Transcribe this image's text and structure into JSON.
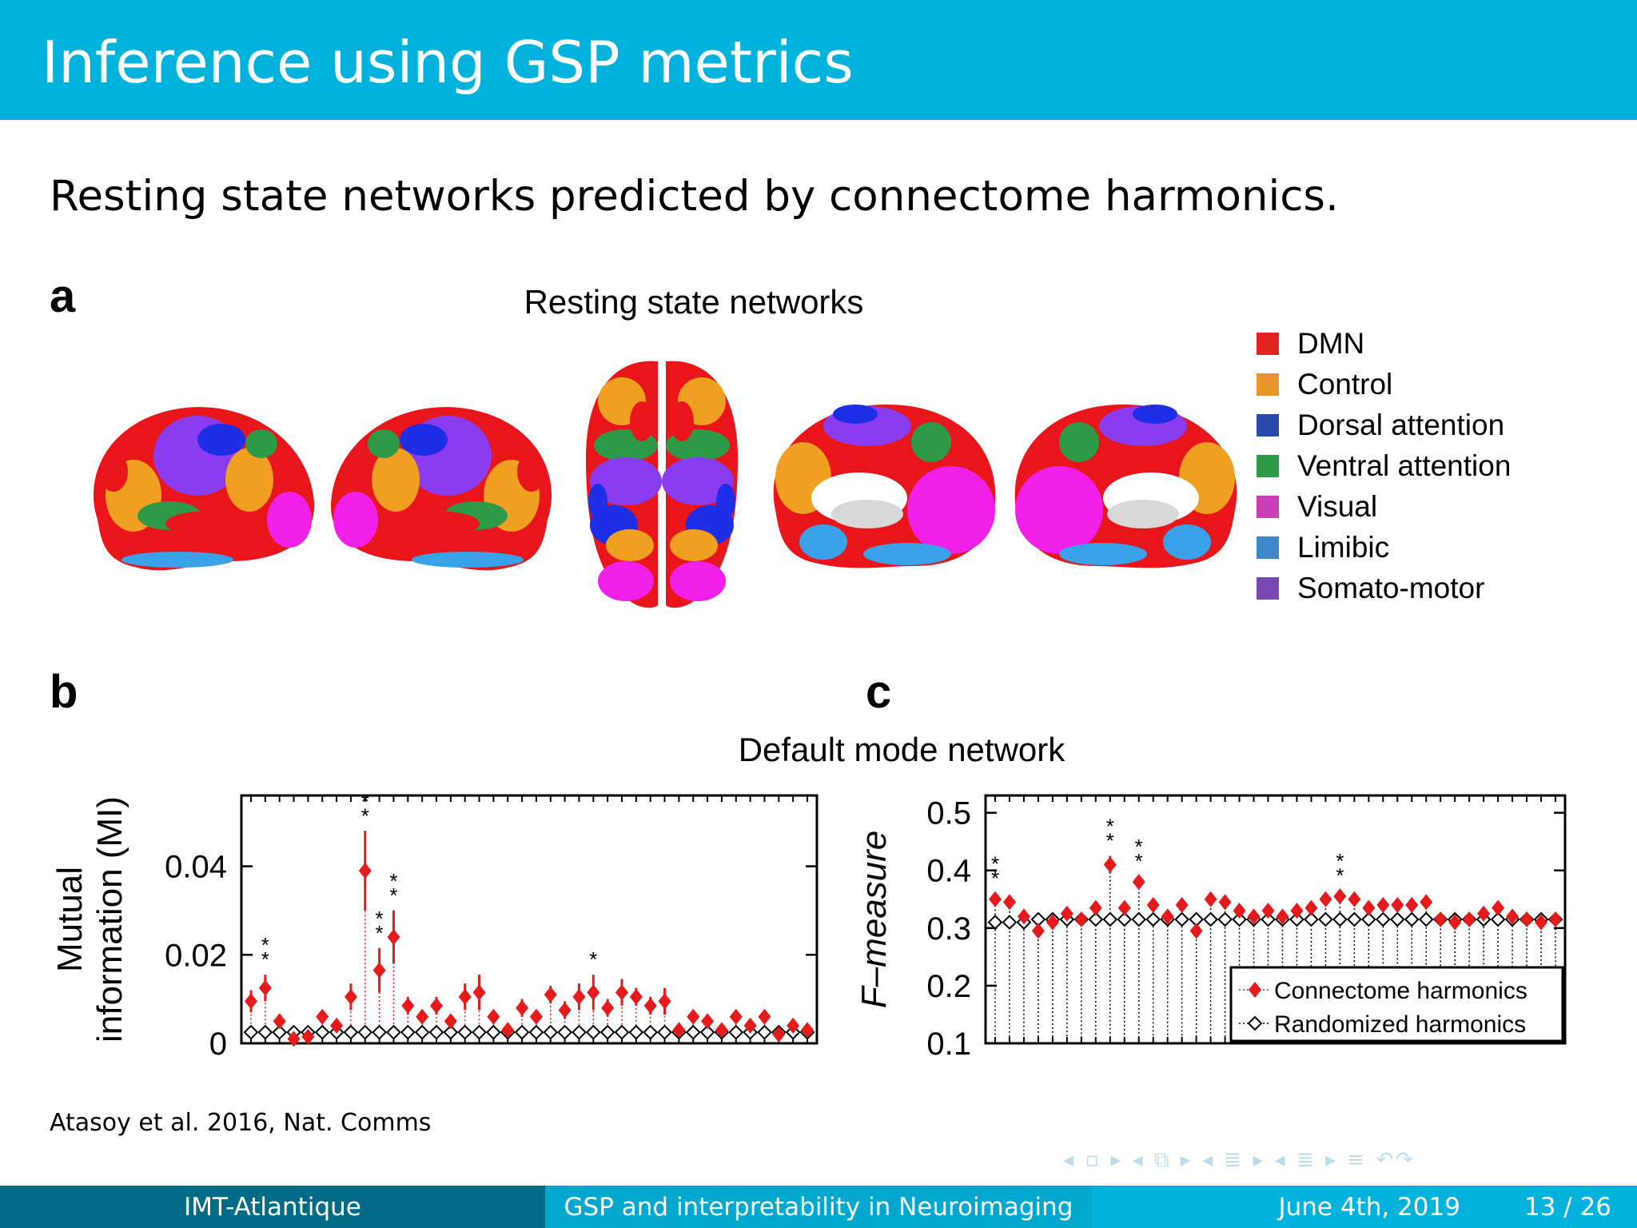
{
  "slide": {
    "title": "Inference using GSP metrics",
    "subtitle": "Resting state networks predicted by connectome harmonics.",
    "citation": "Atasoy et al. 2016, Nat. Comms"
  },
  "footer": {
    "left": "IMT-Atlantique",
    "middle": "GSP and interpretability in Neuroimaging",
    "date": "June 4th, 2019",
    "page": "13 / 26"
  },
  "nav_symbols": "◂ ▫ ▸ ◂ ⧉ ▸ ◂ ≣ ▸ ◂ ≣ ▸ ≡ ↶↷",
  "figure": {
    "panel_a": {
      "letter": "a",
      "title": "Resting state networks",
      "legend": [
        {
          "label": "DMN",
          "color": "#e32522"
        },
        {
          "label": "Control",
          "color": "#e8962c"
        },
        {
          "label": "Dorsal attention",
          "color": "#2a4aaa"
        },
        {
          "label": "Ventral attention",
          "color": "#2e9a48"
        },
        {
          "label": "Visual",
          "color": "#c83cb4"
        },
        {
          "label": "Limibic",
          "color": "#3f86c8"
        },
        {
          "label": "Somato-motor",
          "color": "#7a48b2"
        }
      ],
      "brain_colors": {
        "red": "#e8161a",
        "orange": "#f0a020",
        "blue": "#1e2ee6",
        "green": "#2e9a48",
        "magenta": "#f020e8",
        "light_blue": "#3aa0e8",
        "purple": "#8a3cf0",
        "grey": "#d8d8d8"
      }
    },
    "shared_title": "Default mode network",
    "marker_colors": {
      "connectome": "#e41a1c",
      "randomized": "#000000"
    }
  },
  "chart_data": [
    {
      "type": "scatter",
      "panel": "b",
      "ylabel_lines": [
        "Mutual",
        "information (MI)"
      ],
      "xlabel": "",
      "ylim": [
        0,
        0.056
      ],
      "yticks": [
        0,
        0.02,
        0.04
      ],
      "ytick_labels": [
        "0",
        "0.02",
        "0.04"
      ],
      "x_count": 40,
      "grid": false,
      "series": [
        {
          "values": [
            0.0095,
            0.0125,
            0.005,
            0.001,
            0.0015,
            0.006,
            0.004,
            0.0105,
            0.039,
            0.0165,
            0.024,
            0.0085,
            0.006,
            0.0085,
            0.005,
            0.0105,
            0.0115,
            0.006,
            0.003,
            0.008,
            0.006,
            0.011,
            0.0075,
            0.0105,
            0.0115,
            0.008,
            0.0115,
            0.0105,
            0.0085,
            0.0095,
            0.003,
            0.006,
            0.005,
            0.003,
            0.006,
            0.004,
            0.006,
            0.002,
            0.004,
            0.003
          ],
          "errors": [
            0.0025,
            0.003,
            0.001,
            0.001,
            0.001,
            0.001,
            0.001,
            0.003,
            0.009,
            0.005,
            0.006,
            0.002,
            0.001,
            0.002,
            0.001,
            0.003,
            0.004,
            0.001,
            0.001,
            0.002,
            0.001,
            0.002,
            0.002,
            0.003,
            0.004,
            0.002,
            0.003,
            0.002,
            0.002,
            0.003,
            0.001,
            0.001,
            0.001,
            0.001,
            0.001,
            0.001,
            0.001,
            0.001,
            0.001,
            0.001
          ]
        },
        {
          "values": [
            0.0025,
            0.0025,
            0.0025,
            0.0025,
            0.0025,
            0.0025,
            0.0025,
            0.0025,
            0.0025,
            0.0025,
            0.0025,
            0.0025,
            0.0025,
            0.0025,
            0.0025,
            0.0025,
            0.0025,
            0.0025,
            0.0025,
            0.0025,
            0.0025,
            0.0025,
            0.0025,
            0.0025,
            0.0025,
            0.0025,
            0.0025,
            0.0025,
            0.0025,
            0.0025,
            0.0025,
            0.0025,
            0.0025,
            0.0025,
            0.0025,
            0.0025,
            0.0025,
            0.0025,
            0.0025,
            0.0025
          ]
        }
      ],
      "annotations": [
        {
          "index": 1,
          "text": "**"
        },
        {
          "index": 8,
          "text": "**"
        },
        {
          "index": 9,
          "text": "**"
        },
        {
          "index": 10,
          "text": "**"
        },
        {
          "index": 24,
          "text": "*"
        }
      ]
    },
    {
      "type": "scatter",
      "panel": "c",
      "ylabel": "F–measure",
      "xlabel": "",
      "ylim": [
        0.1,
        0.53
      ],
      "yticks": [
        0.1,
        0.2,
        0.3,
        0.4,
        0.5
      ],
      "ytick_labels": [
        "0.1",
        "0.2",
        "0.3",
        "0.4",
        "0.5"
      ],
      "x_count": 40,
      "grid": false,
      "legend_position": "bottom-right",
      "series": [
        {
          "name": "Connectome harmonics",
          "values": [
            0.35,
            0.345,
            0.32,
            0.295,
            0.31,
            0.325,
            0.315,
            0.335,
            0.41,
            0.335,
            0.38,
            0.34,
            0.32,
            0.34,
            0.295,
            0.35,
            0.345,
            0.33,
            0.32,
            0.33,
            0.32,
            0.33,
            0.335,
            0.35,
            0.355,
            0.35,
            0.335,
            0.34,
            0.34,
            0.34,
            0.345,
            0.315,
            0.31,
            0.315,
            0.325,
            0.335,
            0.32,
            0.315,
            0.31,
            0.315
          ],
          "errors": [
            0.01,
            0.005,
            0.005,
            0.005,
            0.005,
            0.005,
            0.005,
            0.005,
            0.015,
            0.005,
            0.01,
            0.005,
            0.005,
            0.005,
            0.005,
            0.005,
            0.005,
            0.005,
            0.005,
            0.005,
            0.005,
            0.005,
            0.005,
            0.005,
            0.01,
            0.005,
            0.005,
            0.005,
            0.005,
            0.005,
            0.005,
            0.005,
            0.005,
            0.005,
            0.005,
            0.005,
            0.005,
            0.005,
            0.005,
            0.005
          ]
        },
        {
          "name": "Randomized harmonics",
          "values": [
            0.31,
            0.31,
            0.31,
            0.315,
            0.315,
            0.315,
            0.315,
            0.315,
            0.315,
            0.315,
            0.315,
            0.315,
            0.315,
            0.315,
            0.315,
            0.315,
            0.315,
            0.315,
            0.315,
            0.315,
            0.315,
            0.315,
            0.315,
            0.315,
            0.315,
            0.315,
            0.315,
            0.315,
            0.315,
            0.315,
            0.315,
            0.315,
            0.315,
            0.315,
            0.315,
            0.315,
            0.315,
            0.315,
            0.315,
            0.315
          ]
        }
      ],
      "annotations": [
        {
          "index": 0,
          "text": "**"
        },
        {
          "index": 8,
          "text": "**"
        },
        {
          "index": 10,
          "text": "**"
        },
        {
          "index": 24,
          "text": "**"
        }
      ]
    }
  ]
}
